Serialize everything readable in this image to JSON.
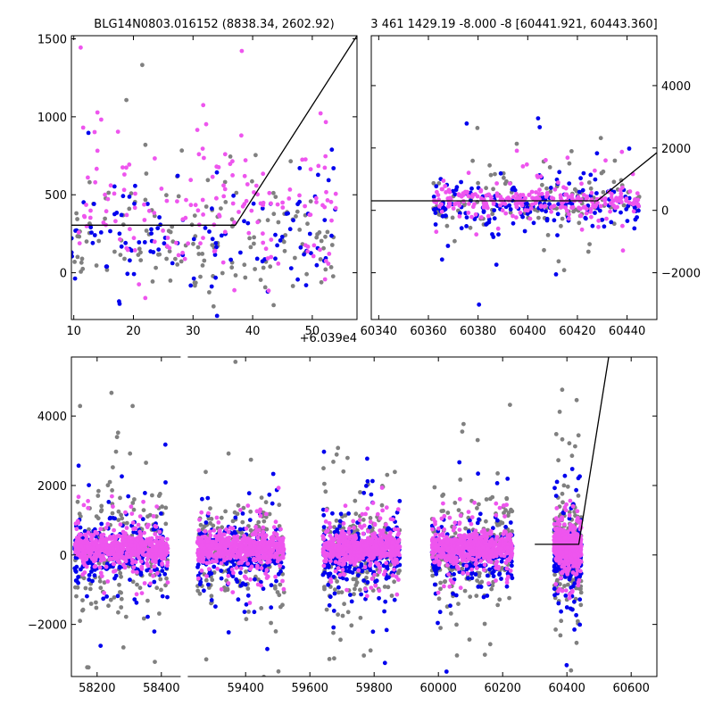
{
  "chart_data": [
    {
      "panel": "top-left",
      "type": "scatter",
      "title": "BLG14N0803.016152 (8838.34, 2602.92)",
      "xlabel": "",
      "ylabel": "",
      "xlim": [
        9.6,
        57.5
      ],
      "ylim": [
        -300,
        1520
      ],
      "xticks": [
        10,
        20,
        30,
        40,
        50
      ],
      "yticks": [
        0,
        500,
        1000,
        1500
      ],
      "y_axis_side": "left",
      "offset_text": "+6.039e4",
      "colors": {
        "grey": "#808080",
        "blue": "#0000ee",
        "magenta": "#ee55ee",
        "model": "#000000"
      },
      "model_line": {
        "x": [
          9.6,
          37.1,
          57.5
        ],
        "y": [
          305,
          305,
          1520
        ]
      },
      "series": [
        {
          "color": "#808080",
          "n": 160,
          "x_range": [
            9.6,
            54
          ],
          "core": 220,
          "sd": 330,
          "seed": 11
        },
        {
          "color": "#0000ee",
          "n": 120,
          "x_range": [
            9.6,
            54
          ],
          "core": 200,
          "sd": 330,
          "seed": 12
        },
        {
          "color": "#ee55ee",
          "n": 170,
          "x_range": [
            9.6,
            54
          ],
          "core": 420,
          "sd": 330,
          "seed": 13
        }
      ]
    },
    {
      "panel": "top-right",
      "type": "scatter",
      "title": "3 461 1429.19 -8.000 -8 [60441.921, 60443.360]",
      "xlabel": "",
      "ylabel": "",
      "xlim": [
        60337,
        60452
      ],
      "ylim": [
        -3500,
        5600
      ],
      "xticks": [
        60340,
        60360,
        60380,
        60400,
        60420,
        60440
      ],
      "yticks": [
        -2000,
        0,
        2000,
        4000
      ],
      "y_axis_side": "right",
      "model_line": {
        "x": [
          60337,
          60428,
          60452
        ],
        "y": [
          305,
          305,
          1850
        ]
      },
      "series": [
        {
          "color": "#808080",
          "n": 140,
          "x_range": [
            60362,
            60445
          ],
          "core": 200,
          "sd": 700,
          "seed": 21
        },
        {
          "color": "#0000ee",
          "n": 180,
          "x_range": [
            60362,
            60445
          ],
          "core": 150,
          "sd": 650,
          "seed": 22
        },
        {
          "color": "#ee55ee",
          "n": 260,
          "x_range": [
            60362,
            60445
          ],
          "core": 300,
          "sd": 350,
          "seed": 23
        }
      ]
    },
    {
      "panel": "bottom",
      "type": "scatter",
      "title": "",
      "xlabel": "",
      "ylabel": "",
      "xlim": [
        58120,
        60680
      ],
      "ylim": [
        -3500,
        5700
      ],
      "xticks": [
        58200,
        58400,
        59400,
        59600,
        59800,
        60000,
        60200,
        60400,
        60600
      ],
      "xtick_labels": [
        "58200",
        "58400",
        "59400",
        "59600",
        "59800",
        "60000",
        "60200",
        "60400",
        "60600"
      ],
      "yticks": [
        -2000,
        0,
        2000,
        4000
      ],
      "y_axis_side": "left",
      "axis_break": true,
      "segments": [
        [
          58120,
          58460
        ],
        [
          59220,
          60680
        ]
      ],
      "model_line": {
        "x": [
          60300,
          60437,
          60530
        ],
        "y": [
          305,
          305,
          5700
        ]
      },
      "seasons": [
        {
          "x_range": [
            58130,
            58420
          ],
          "seed": 31
        },
        {
          "x_range": [
            59250,
            59520
          ],
          "seed": 32
        },
        {
          "x_range": [
            59640,
            59880
          ],
          "seed": 33
        },
        {
          "x_range": [
            59980,
            60230
          ],
          "seed": 34
        },
        {
          "x_range": [
            60360,
            60445
          ],
          "seed": 35
        }
      ],
      "series": [
        {
          "color": "#808080",
          "n_per_season": 220,
          "core": 100,
          "sd": 1200
        },
        {
          "color": "#0000ee",
          "n_per_season": 260,
          "core": 0,
          "sd": 650
        },
        {
          "color": "#ee55ee",
          "n_per_season": 600,
          "core": 200,
          "sd": 320
        }
      ]
    }
  ]
}
